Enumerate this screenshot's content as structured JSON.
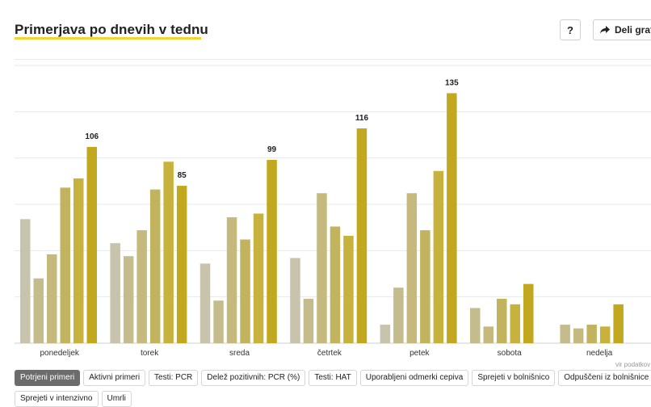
{
  "header": {
    "title": "Primerjava po dnevih v tednu",
    "help_label": "?",
    "share_label": "Deli graf"
  },
  "source_label": "vir podatkov",
  "tabs": [
    {
      "label": "Potrjeni primeri",
      "active": true
    },
    {
      "label": "Aktivni primeri",
      "active": false
    },
    {
      "label": "Testi: PCR",
      "active": false
    },
    {
      "label": "Delež pozitivnih: PCR (%)",
      "active": false
    },
    {
      "label": "Testi: HAT",
      "active": false
    },
    {
      "label": "Uporabljeni odmerki cepiva",
      "active": false
    },
    {
      "label": "Sprejeti v bolnišnico",
      "active": false
    },
    {
      "label": "Odpuščeni iz bolnišnice",
      "active": false
    },
    {
      "label": "Sprejeti v intenzivno",
      "active": false
    },
    {
      "label": "Umrli",
      "active": false
    }
  ],
  "colors": {
    "shades": [
      "#c4c4c4",
      "#c7c3ac",
      "#c4bc8c",
      "#c5b97e",
      "#c2b35e",
      "#c7b23e",
      "#c2a81f"
    ],
    "grid": "#e8e8e8",
    "title_underline": "#f5d432",
    "active_tab": "#6c6c6c"
  },
  "chart_data": {
    "type": "bar",
    "title": "Primerjava po dnevih v tednu",
    "categories": [
      "ponedeljek",
      "torek",
      "sreda",
      "četrtek",
      "petek",
      "sobota",
      "nedelja"
    ],
    "ylim": [
      0,
      150
    ],
    "grid": true,
    "y_tick_labels_shown": false,
    "groups": [
      {
        "category": "ponedeljek",
        "values": [
          67,
          35,
          48,
          84,
          89,
          106
        ],
        "labeled_value": 106
      },
      {
        "category": "torek",
        "values": [
          54,
          47,
          61,
          83,
          98,
          85
        ],
        "labeled_value": 85
      },
      {
        "category": "sreda",
        "values": [
          43,
          23,
          68,
          56,
          70,
          99
        ],
        "labeled_value": 99
      },
      {
        "category": "četrtek",
        "values": [
          46,
          24,
          81,
          63,
          58,
          116
        ],
        "labeled_value": 116
      },
      {
        "category": "petek",
        "values": [
          10,
          30,
          81,
          61,
          93,
          135
        ],
        "labeled_value": 135
      },
      {
        "category": "sobota",
        "values": [
          19,
          9,
          24,
          21,
          32
        ],
        "labeled_value": null
      },
      {
        "category": "nedelja",
        "values": [
          10,
          8,
          10,
          9,
          21
        ],
        "labeled_value": null
      }
    ]
  }
}
